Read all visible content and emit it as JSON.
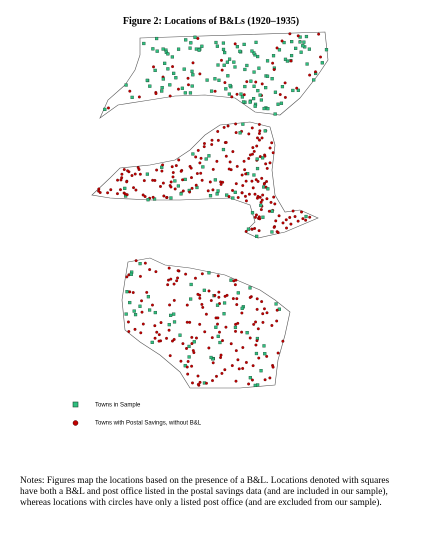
{
  "title": "Figure 2: Locations of B&Ls (1920–1935)",
  "legend": {
    "items": [
      "Towns in Sample",
      "Towns with Postal Savings, without B&L"
    ]
  },
  "notes": "Notes: Figures map the locations based on the presence of a B&L. Locations denoted with squares have both a B&L and post office listed in the postal savings data (and are included in our sample), whereas locations with circles have only a listed post office (and are excluded from our sample)."
}
